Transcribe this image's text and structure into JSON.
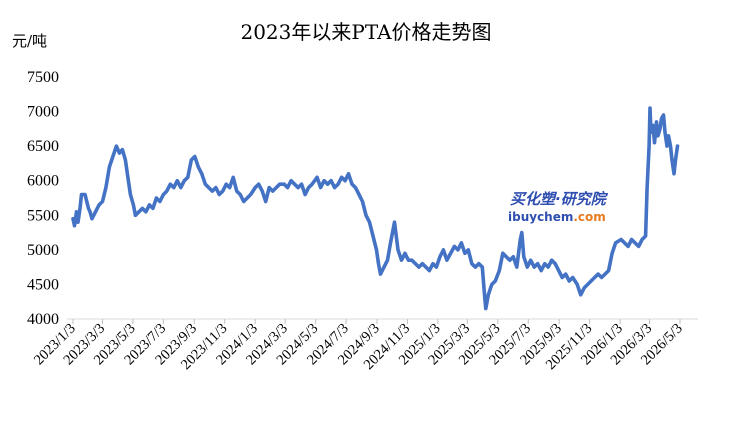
{
  "chart_data": {
    "type": "line",
    "title": "2023年以来PTA价格走势图",
    "unit": "元/吨",
    "ylim": [
      4000,
      7500
    ],
    "y_ticks": [
      4000,
      4500,
      5000,
      5500,
      6000,
      6500,
      7000,
      7500
    ],
    "grid": false,
    "x_labels": [
      "2023/1/3",
      "2023/3/3",
      "2023/5/3",
      "2023/7/3",
      "2023/9/3",
      "2023/11/3",
      "2024/1/3",
      "2024/3/3",
      "2024/5/3",
      "2024/7/3",
      "2024/9/3",
      "2024/11/3",
      "2025/1/3",
      "2025/3/3",
      "2025/5/3",
      "2025/7/3",
      "2025/9/3",
      "2025/11/3",
      "2026/1/3",
      "2026/3/3",
      "2026/5/3"
    ],
    "series": [
      {
        "color": "#4472c4",
        "points": [
          [
            "2023-01-03",
            5450
          ],
          [
            "2023-01-06",
            5350
          ],
          [
            "2023-01-10",
            5550
          ],
          [
            "2023-01-13",
            5400
          ],
          [
            "2023-01-17",
            5600
          ],
          [
            "2023-01-20",
            5800
          ],
          [
            "2023-01-27",
            5800
          ],
          [
            "2023-02-03",
            5600
          ],
          [
            "2023-02-06",
            5550
          ],
          [
            "2023-02-10",
            5450
          ],
          [
            "2023-02-17",
            5550
          ],
          [
            "2023-02-24",
            5650
          ],
          [
            "2023-03-03",
            5700
          ],
          [
            "2023-03-10",
            5900
          ],
          [
            "2023-03-17",
            6200
          ],
          [
            "2023-03-24",
            6350
          ],
          [
            "2023-03-31",
            6500
          ],
          [
            "2023-04-06",
            6400
          ],
          [
            "2023-04-12",
            6450
          ],
          [
            "2023-04-18",
            6300
          ],
          [
            "2023-04-24",
            6000
          ],
          [
            "2023-04-28",
            5800
          ],
          [
            "2023-05-04",
            5650
          ],
          [
            "2023-05-08",
            5500
          ],
          [
            "2023-05-15",
            5550
          ],
          [
            "2023-05-22",
            5600
          ],
          [
            "2023-05-29",
            5550
          ],
          [
            "2023-06-05",
            5650
          ],
          [
            "2023-06-12",
            5600
          ],
          [
            "2023-06-19",
            5750
          ],
          [
            "2023-06-26",
            5700
          ],
          [
            "2023-07-03",
            5800
          ],
          [
            "2023-07-10",
            5850
          ],
          [
            "2023-07-17",
            5950
          ],
          [
            "2023-07-24",
            5900
          ],
          [
            "2023-07-31",
            6000
          ],
          [
            "2023-08-07",
            5900
          ],
          [
            "2023-08-14",
            6000
          ],
          [
            "2023-08-21",
            6050
          ],
          [
            "2023-08-28",
            6300
          ],
          [
            "2023-09-04",
            6350
          ],
          [
            "2023-09-11",
            6200
          ],
          [
            "2023-09-18",
            6100
          ],
          [
            "2023-09-25",
            5950
          ],
          [
            "2023-10-09",
            5850
          ],
          [
            "2023-10-16",
            5900
          ],
          [
            "2023-10-23",
            5800
          ],
          [
            "2023-10-30",
            5850
          ],
          [
            "2023-11-06",
            5950
          ],
          [
            "2023-11-13",
            5900
          ],
          [
            "2023-11-20",
            6050
          ],
          [
            "2023-11-27",
            5850
          ],
          [
            "2023-12-04",
            5800
          ],
          [
            "2023-12-11",
            5700
          ],
          [
            "2023-12-18",
            5750
          ],
          [
            "2023-12-25",
            5800
          ],
          [
            "2024-01-03",
            5900
          ],
          [
            "2024-01-10",
            5950
          ],
          [
            "2024-01-17",
            5850
          ],
          [
            "2024-01-24",
            5700
          ],
          [
            "2024-01-31",
            5900
          ],
          [
            "2024-02-07",
            5850
          ],
          [
            "2024-02-21",
            5950
          ],
          [
            "2024-03-01",
            5950
          ],
          [
            "2024-03-08",
            5900
          ],
          [
            "2024-03-15",
            6000
          ],
          [
            "2024-03-22",
            5950
          ],
          [
            "2024-03-29",
            5900
          ],
          [
            "2024-04-05",
            5950
          ],
          [
            "2024-04-12",
            5800
          ],
          [
            "2024-04-19",
            5900
          ],
          [
            "2024-04-26",
            5950
          ],
          [
            "2024-05-06",
            6050
          ],
          [
            "2024-05-13",
            5900
          ],
          [
            "2024-05-20",
            6000
          ],
          [
            "2024-05-27",
            5950
          ],
          [
            "2024-06-03",
            6000
          ],
          [
            "2024-06-10",
            5900
          ],
          [
            "2024-06-17",
            5950
          ],
          [
            "2024-06-24",
            6050
          ],
          [
            "2024-07-01",
            6000
          ],
          [
            "2024-07-08",
            6100
          ],
          [
            "2024-07-15",
            5950
          ],
          [
            "2024-07-22",
            5900
          ],
          [
            "2024-07-29",
            5800
          ],
          [
            "2024-08-05",
            5700
          ],
          [
            "2024-08-12",
            5500
          ],
          [
            "2024-08-19",
            5400
          ],
          [
            "2024-08-26",
            5200
          ],
          [
            "2024-09-02",
            5000
          ],
          [
            "2024-09-06",
            4800
          ],
          [
            "2024-09-10",
            4650
          ],
          [
            "2024-09-17",
            4750
          ],
          [
            "2024-09-24",
            4850
          ],
          [
            "2024-09-30",
            5100
          ],
          [
            "2024-10-08",
            5400
          ],
          [
            "2024-10-15",
            5000
          ],
          [
            "2024-10-22",
            4850
          ],
          [
            "2024-10-29",
            4950
          ],
          [
            "2024-11-05",
            4850
          ],
          [
            "2024-11-12",
            4850
          ],
          [
            "2024-11-19",
            4800
          ],
          [
            "2024-11-26",
            4750
          ],
          [
            "2024-12-03",
            4800
          ],
          [
            "2024-12-10",
            4750
          ],
          [
            "2024-12-17",
            4700
          ],
          [
            "2024-12-24",
            4800
          ],
          [
            "2024-12-31",
            4750
          ],
          [
            "2025-01-07",
            4900
          ],
          [
            "2025-01-14",
            5000
          ],
          [
            "2025-01-21",
            4850
          ],
          [
            "2025-02-05",
            5050
          ],
          [
            "2025-02-12",
            5000
          ],
          [
            "2025-02-19",
            5100
          ],
          [
            "2025-02-26",
            4950
          ],
          [
            "2025-03-05",
            5000
          ],
          [
            "2025-03-12",
            4800
          ],
          [
            "2025-03-19",
            4750
          ],
          [
            "2025-03-26",
            4800
          ],
          [
            "2025-04-02",
            4750
          ],
          [
            "2025-04-07",
            4300
          ],
          [
            "2025-04-09",
            4150
          ],
          [
            "2025-04-14",
            4350
          ],
          [
            "2025-04-21",
            4500
          ],
          [
            "2025-04-28",
            4550
          ],
          [
            "2025-05-06",
            4700
          ],
          [
            "2025-05-13",
            4950
          ],
          [
            "2025-05-20",
            4900
          ],
          [
            "2025-05-27",
            4850
          ],
          [
            "2025-06-03",
            4900
          ],
          [
            "2025-06-10",
            4750
          ],
          [
            "2025-06-17",
            5150
          ],
          [
            "2025-06-20",
            5250
          ],
          [
            "2025-06-24",
            4900
          ],
          [
            "2025-07-01",
            4750
          ],
          [
            "2025-07-08",
            4850
          ],
          [
            "2025-07-15",
            4750
          ],
          [
            "2025-07-22",
            4800
          ],
          [
            "2025-07-29",
            4700
          ],
          [
            "2025-08-05",
            4800
          ],
          [
            "2025-08-12",
            4750
          ],
          [
            "2025-08-19",
            4850
          ],
          [
            "2025-08-26",
            4800
          ],
          [
            "2025-09-02",
            4700
          ],
          [
            "2025-09-09",
            4600
          ],
          [
            "2025-09-16",
            4650
          ],
          [
            "2025-09-23",
            4550
          ],
          [
            "2025-09-30",
            4600
          ],
          [
            "2025-10-09",
            4500
          ],
          [
            "2025-10-16",
            4350
          ],
          [
            "2025-10-23",
            4450
          ],
          [
            "2025-10-30",
            4500
          ],
          [
            "2025-11-06",
            4550
          ],
          [
            "2025-11-13",
            4600
          ],
          [
            "2025-11-20",
            4650
          ],
          [
            "2025-11-27",
            4600
          ],
          [
            "2025-12-04",
            4650
          ],
          [
            "2025-12-11",
            4700
          ],
          [
            "2025-12-18",
            4950
          ],
          [
            "2025-12-25",
            5100
          ],
          [
            "2026-01-05",
            5150
          ],
          [
            "2026-01-12",
            5100
          ],
          [
            "2026-01-19",
            5050
          ],
          [
            "2026-01-26",
            5150
          ],
          [
            "2026-02-02",
            5100
          ],
          [
            "2026-02-09",
            5050
          ],
          [
            "2026-02-16",
            5150
          ],
          [
            "2026-02-23",
            5200
          ],
          [
            "2026-02-26",
            5900
          ],
          [
            "2026-03-02",
            6500
          ],
          [
            "2026-03-04",
            7050
          ],
          [
            "2026-03-06",
            6700
          ],
          [
            "2026-03-10",
            6800
          ],
          [
            "2026-03-13",
            6550
          ],
          [
            "2026-03-17",
            6850
          ],
          [
            "2026-03-20",
            6650
          ],
          [
            "2026-03-24",
            6750
          ],
          [
            "2026-03-27",
            6900
          ],
          [
            "2026-03-31",
            6950
          ],
          [
            "2026-04-03",
            6700
          ],
          [
            "2026-04-07",
            6500
          ],
          [
            "2026-04-10",
            6650
          ],
          [
            "2026-04-14",
            6500
          ],
          [
            "2026-04-17",
            6300
          ],
          [
            "2026-04-21",
            6100
          ],
          [
            "2026-04-24",
            6300
          ],
          [
            "2026-04-28",
            6500
          ]
        ]
      }
    ]
  },
  "watermark": {
    "cn": "买化塑·研究院",
    "en_prefix": "ibuychem",
    "en_suffix": ".com"
  }
}
